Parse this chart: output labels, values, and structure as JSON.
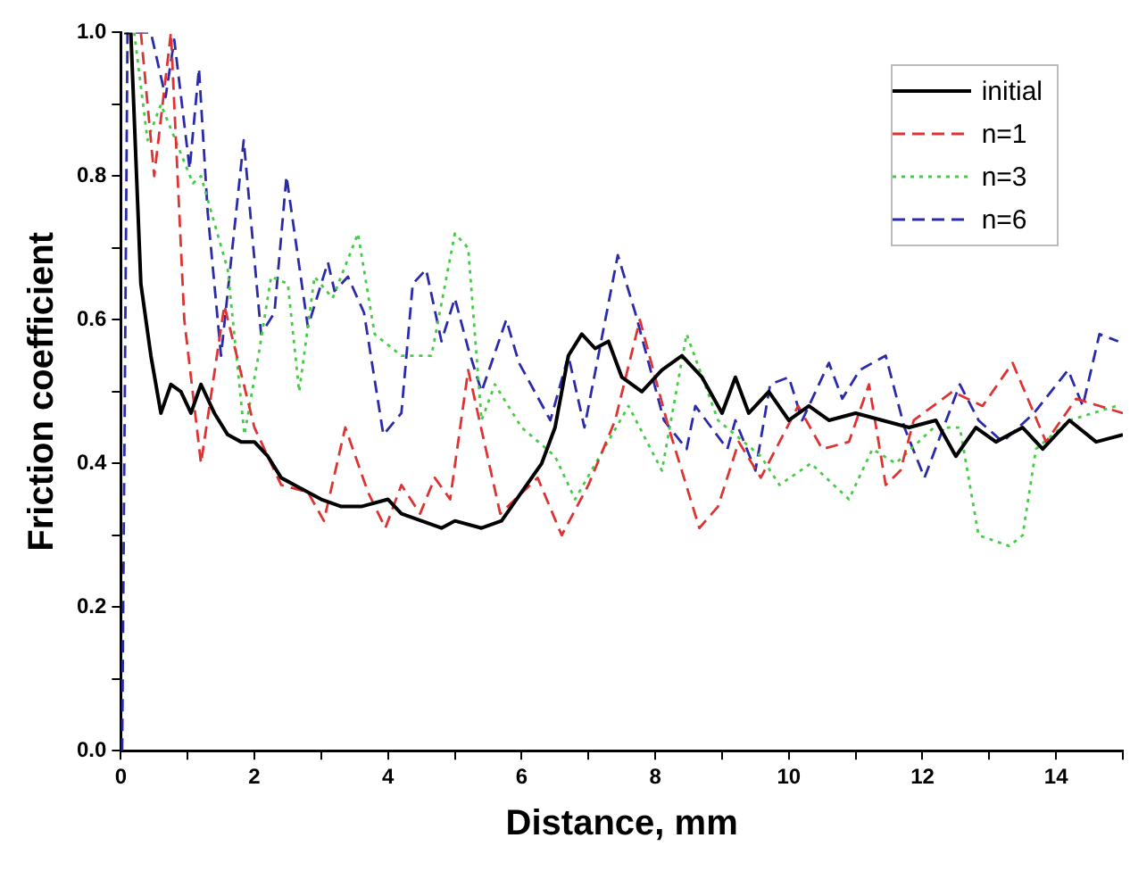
{
  "chart_data": {
    "type": "line",
    "xlabel": "Distance, mm",
    "ylabel": "Friction coefficient",
    "xlim": [
      0,
      15
    ],
    "ylim": [
      0,
      1.0
    ],
    "xticks": [
      0,
      {
        "value": 1,
        "label": null
      },
      2,
      {
        "value": 3,
        "label": null
      },
      4,
      {
        "value": 5,
        "label": null
      },
      6,
      {
        "value": 7,
        "label": null
      },
      8,
      {
        "value": 9,
        "label": null
      },
      10,
      {
        "value": 11,
        "label": null
      },
      12,
      {
        "value": 13,
        "label": null
      },
      14,
      {
        "value": 15,
        "label": null
      }
    ],
    "yticks": [
      {
        "value": 0,
        "label": "0.0"
      },
      {
        "value": 0.1,
        "label": null
      },
      {
        "value": 0.2,
        "label": "0.2"
      },
      {
        "value": 0.3,
        "label": null
      },
      {
        "value": 0.4,
        "label": "0.4"
      },
      {
        "value": 0.5,
        "label": null
      },
      {
        "value": 0.6,
        "label": "0.6"
      },
      {
        "value": 0.7,
        "label": null
      },
      {
        "value": 0.8,
        "label": "0.8"
      },
      {
        "value": 0.9,
        "label": null
      },
      {
        "value": 1.0,
        "label": "1.0"
      }
    ],
    "grid": false,
    "legend": "top right",
    "marker": "none",
    "series": [
      {
        "name": "initial",
        "color": "#000000",
        "line_style": "solid",
        "x": [
          0.05,
          0.15,
          0.3,
          0.45,
          0.6,
          0.75,
          0.9,
          1.05,
          1.2,
          1.4,
          1.6,
          1.8,
          2.0,
          2.2,
          2.4,
          2.6,
          2.8,
          3.0,
          3.3,
          3.6,
          4.0,
          4.2,
          4.5,
          4.8,
          5.0,
          5.4,
          5.7,
          6.0,
          6.3,
          6.5,
          6.7,
          6.9,
          7.1,
          7.3,
          7.5,
          7.8,
          8.1,
          8.4,
          8.7,
          9.0,
          9.2,
          9.4,
          9.7,
          10.0,
          10.3,
          10.6,
          11.0,
          11.4,
          11.8,
          12.2,
          12.5,
          12.8,
          13.1,
          13.5,
          13.8,
          14.2,
          14.6,
          15.0
        ],
        "values": [
          1.0,
          1.0,
          0.65,
          0.55,
          0.47,
          0.51,
          0.5,
          0.47,
          0.51,
          0.47,
          0.44,
          0.43,
          0.43,
          0.41,
          0.38,
          0.37,
          0.36,
          0.35,
          0.34,
          0.34,
          0.35,
          0.33,
          0.32,
          0.31,
          0.32,
          0.31,
          0.32,
          0.36,
          0.4,
          0.45,
          0.55,
          0.58,
          0.56,
          0.57,
          0.52,
          0.5,
          0.53,
          0.55,
          0.52,
          0.47,
          0.52,
          0.47,
          0.5,
          0.46,
          0.48,
          0.46,
          0.47,
          0.46,
          0.45,
          0.46,
          0.41,
          0.45,
          0.43,
          0.45,
          0.42,
          0.46,
          0.43,
          0.44
        ]
      },
      {
        "name": "n=1",
        "color": "#dd3333",
        "line_style": "dashed",
        "x": [
          0.3,
          0.5,
          0.75,
          0.95,
          1.2,
          1.55,
          2.0,
          2.4,
          2.8,
          3.04,
          3.36,
          3.7,
          3.96,
          4.2,
          4.48,
          4.7,
          4.93,
          5.2,
          5.68,
          6.24,
          6.6,
          7.0,
          7.4,
          7.77,
          8.2,
          8.66,
          8.94,
          9.25,
          9.58,
          10.14,
          10.5,
          10.9,
          11.2,
          11.45,
          11.67,
          11.87,
          12.45,
          12.9,
          13.35,
          13.85,
          14.3,
          15.0
        ],
        "values": [
          1.0,
          0.8,
          1.0,
          0.6,
          0.4,
          0.62,
          0.45,
          0.37,
          0.36,
          0.32,
          0.45,
          0.36,
          0.31,
          0.37,
          0.33,
          0.38,
          0.35,
          0.53,
          0.33,
          0.38,
          0.3,
          0.37,
          0.46,
          0.6,
          0.45,
          0.31,
          0.34,
          0.43,
          0.38,
          0.48,
          0.42,
          0.43,
          0.51,
          0.37,
          0.39,
          0.46,
          0.5,
          0.48,
          0.54,
          0.43,
          0.49,
          0.47
        ]
      },
      {
        "name": "n=3",
        "color": "#44cc44",
        "line_style": "dotted",
        "x": [
          0.2,
          0.4,
          0.6,
          1.08,
          1.2,
          1.6,
          1.85,
          2.06,
          2.25,
          2.5,
          2.67,
          2.9,
          3.17,
          3.55,
          3.8,
          4.2,
          4.65,
          5.0,
          5.2,
          5.4,
          5.6,
          6.0,
          6.5,
          6.8,
          7.6,
          8.1,
          8.47,
          8.94,
          9.58,
          9.86,
          10.33,
          10.9,
          11.25,
          11.6,
          12.17,
          12.56,
          12.84,
          13.3,
          13.5,
          13.7,
          14.2,
          14.9
        ],
        "values": [
          1.0,
          0.85,
          0.9,
          0.79,
          0.8,
          0.67,
          0.44,
          0.55,
          0.66,
          0.65,
          0.5,
          0.66,
          0.63,
          0.72,
          0.58,
          0.55,
          0.55,
          0.72,
          0.7,
          0.46,
          0.51,
          0.45,
          0.41,
          0.35,
          0.48,
          0.39,
          0.58,
          0.46,
          0.41,
          0.37,
          0.4,
          0.35,
          0.42,
          0.4,
          0.45,
          0.45,
          0.3,
          0.285,
          0.3,
          0.42,
          0.46,
          0.48
        ]
      },
      {
        "name": "n=6",
        "color": "#2a2aaa",
        "line_style": "dashed",
        "x": [
          0.02,
          0.1,
          0.45,
          0.67,
          0.8,
          1.03,
          1.17,
          1.3,
          1.5,
          1.84,
          2.1,
          2.3,
          2.48,
          2.8,
          3.1,
          3.2,
          3.4,
          3.64,
          3.93,
          4.2,
          4.37,
          4.57,
          4.8,
          5.0,
          5.2,
          5.4,
          5.77,
          5.96,
          6.43,
          6.7,
          6.94,
          7.44,
          7.7,
          8.13,
          8.47,
          8.6,
          9.08,
          9.2,
          9.5,
          9.72,
          10.0,
          10.2,
          10.6,
          10.8,
          11.06,
          11.45,
          11.73,
          12.03,
          12.56,
          12.84,
          13.2,
          13.67,
          14.18,
          14.4,
          14.65,
          14.93
        ],
        "values": [
          0,
          1.0,
          1.0,
          0.91,
          0.99,
          0.81,
          0.95,
          0.75,
          0.55,
          0.85,
          0.58,
          0.61,
          0.8,
          0.59,
          0.68,
          0.64,
          0.66,
          0.61,
          0.44,
          0.47,
          0.65,
          0.67,
          0.57,
          0.63,
          0.56,
          0.5,
          0.6,
          0.54,
          0.46,
          0.55,
          0.45,
          0.69,
          0.61,
          0.46,
          0.42,
          0.48,
          0.42,
          0.46,
          0.39,
          0.51,
          0.52,
          0.46,
          0.54,
          0.49,
          0.53,
          0.55,
          0.45,
          0.38,
          0.51,
          0.46,
          0.43,
          0.47,
          0.53,
          0.48,
          0.58,
          0.57
        ]
      }
    ]
  }
}
